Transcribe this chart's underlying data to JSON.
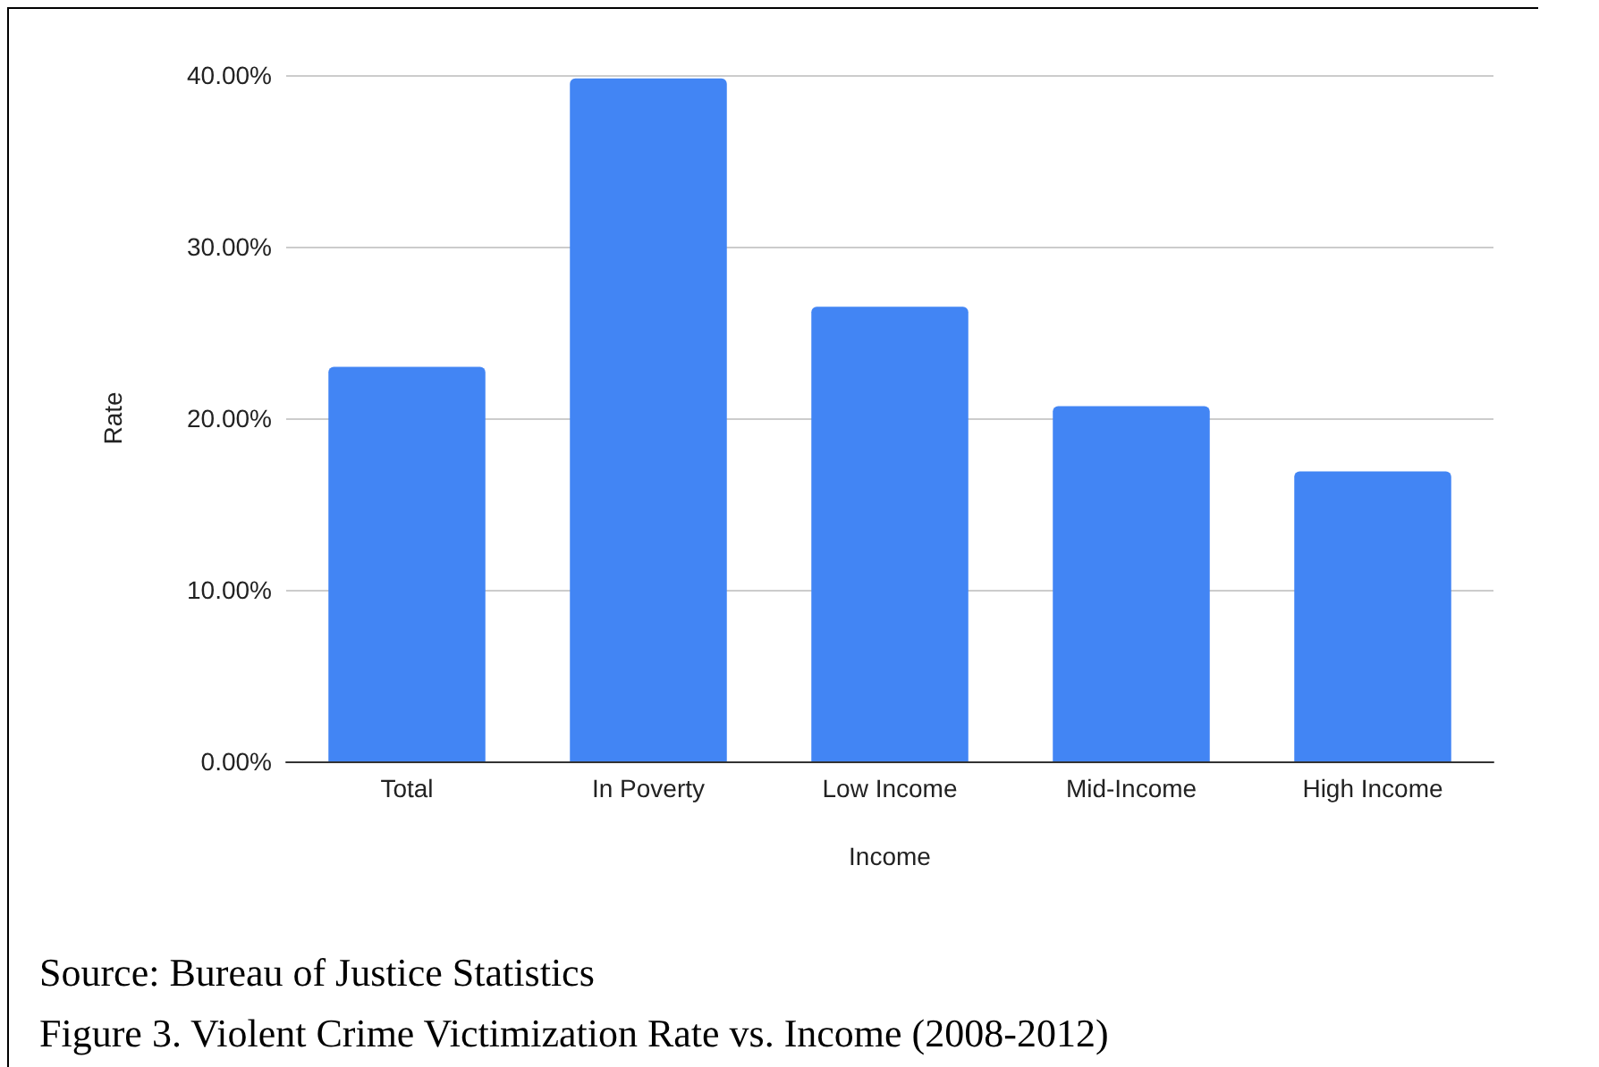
{
  "chart_data": {
    "type": "bar",
    "xlabel": "Income",
    "ylabel": "Rate",
    "categories": [
      "Total",
      "In Poverty",
      "Low Income",
      "Mid-Income",
      "High Income"
    ],
    "values": [
      23.0,
      39.8,
      26.5,
      20.7,
      16.9
    ],
    "color": "#4285f4",
    "ylim": [
      0,
      40
    ],
    "yticks": [
      {
        "value": 0,
        "label": "0.00%"
      },
      {
        "value": 10,
        "label": "10.00%"
      },
      {
        "value": 20,
        "label": "20.00%"
      },
      {
        "value": 30,
        "label": "30.00%"
      },
      {
        "value": 40,
        "label": "40.00%"
      }
    ],
    "grid": "y",
    "annotations": [
      "Source: Bureau of Justice Statistics",
      "Figure 3. Violent Crime Victimization Rate vs. Income (2008-2012)"
    ]
  }
}
